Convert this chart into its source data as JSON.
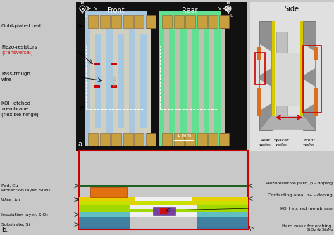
{
  "bg_color": "#c8c8c8",
  "top_panel_bg": "#111111",
  "front_chip_color": "#a8c8e0",
  "rear_chip_color": "#60e090",
  "pad_color": "#c8a040",
  "wire_color": "#d0cfc0",
  "red_mark_color": "#cc0000",
  "side_bg": "#e0e0e0",
  "side_body_color": "#909090",
  "side_white": "#f0f0f0",
  "side_yellow": "#d8c800",
  "side_orange": "#d87020",
  "side_dark": "#707070",
  "left_labels": [
    "Gold-plated pad",
    "Piezo-resistors",
    "(transversal)",
    "Pass-trough",
    "wire",
    "KOH etched",
    "membrane",
    "(flexible hinge)"
  ],
  "bottom_left_labels": [
    "Pad, Cu",
    "Protection layer, Si₃N₄",
    "Wire, Au",
    "Insulation layer, SiO₂",
    "Substrate, Si"
  ],
  "bottom_right_labels": [
    "Piezoresistive path, p - doping",
    "Contacting area, p+ - doping",
    "KOH etched membrane",
    "Hard mask for etching,\nSiO₂ & Si₃N₄"
  ],
  "layer_colors": {
    "substrate_blue": "#4080a0",
    "insulation_cyan": "#60c0c0",
    "lime": "#a0d800",
    "yellow_green": "#c8e000",
    "gold_wire": "#e8d000",
    "orange_pad": "#e07010",
    "dark_green": "#206020",
    "purple": "#7840a0",
    "red_contact": "#cc1010",
    "white_gap": "#f0f0f0",
    "hard_mask": "#3878a0"
  }
}
